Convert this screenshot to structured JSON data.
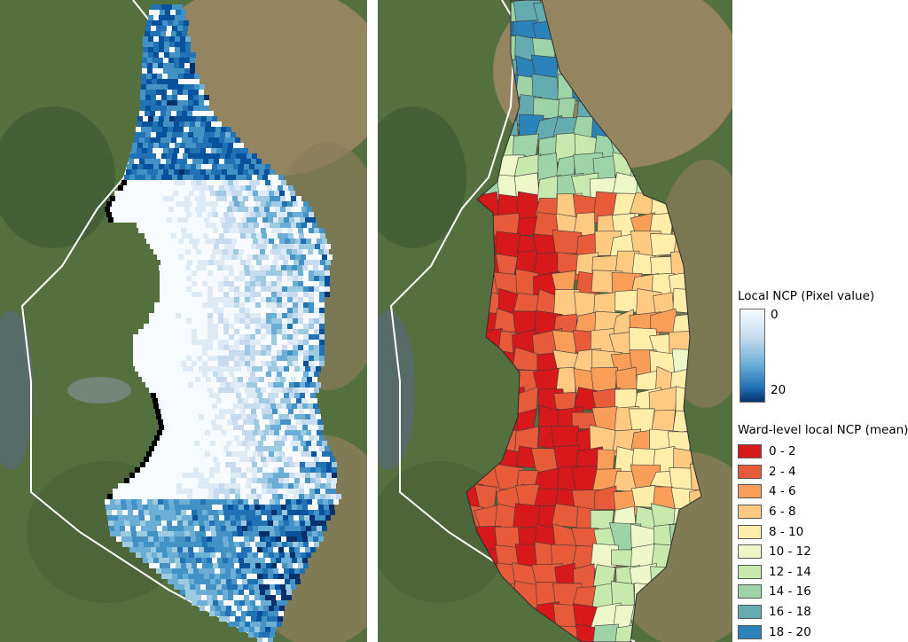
{
  "legend_pixel": {
    "title": "Local NCP (Pixel value)",
    "min_label": "0",
    "max_label": "20",
    "color_low": "#f7fbff",
    "color_high": "#08306b"
  },
  "legend_ward": {
    "title": "Ward-level local NCP (mean)",
    "classes": [
      {
        "label": "0 - 2",
        "color": "#d7191c"
      },
      {
        "label": "2 - 4",
        "color": "#e85b3a"
      },
      {
        "label": "4 - 6",
        "color": "#f99e59"
      },
      {
        "label": "6 - 8",
        "color": "#fec980"
      },
      {
        "label": "8 - 10",
        "color": "#ffedaa"
      },
      {
        "label": "10 - 12",
        "color": "#edf7c9"
      },
      {
        "label": "12 - 14",
        "color": "#c7e9ad"
      },
      {
        "label": "14 - 16",
        "color": "#9dd3a7"
      },
      {
        "label": "16 - 18",
        "color": "#64abb0"
      },
      {
        "label": "18 - 20",
        "color": "#2b83ba"
      }
    ]
  },
  "map_colors": {
    "satellite_green": "#4f6a3d",
    "satellite_tan": "#a08665",
    "boundary": "#ffffff"
  }
}
